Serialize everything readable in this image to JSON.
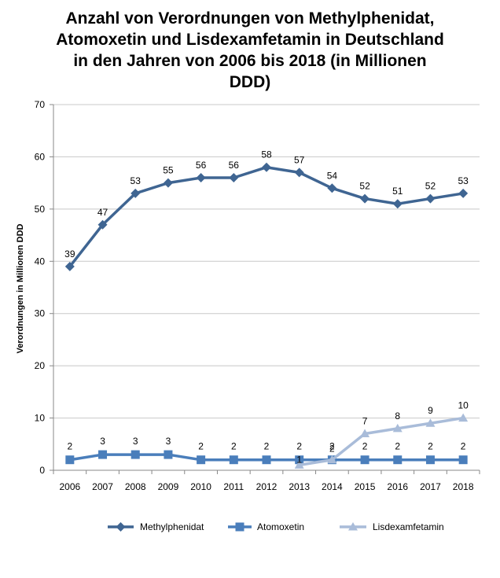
{
  "chart_data": {
    "type": "line",
    "title_lines": [
      "Anzahl von Verordnungen von Methylphenidat,",
      "Atomoxetin und Lisdexamfetamin in Deutschland",
      "in den Jahren von 2006 bis 2018 (in Millionen",
      "DDD)"
    ],
    "ylabel": "Verordnungen in Millionen DDD",
    "xlabel": "",
    "ylim": [
      0,
      70
    ],
    "yticks": [
      0,
      10,
      20,
      30,
      40,
      50,
      60,
      70
    ],
    "grid": true,
    "legend_position": "bottom",
    "categories": [
      "2006",
      "2007",
      "2008",
      "2009",
      "2010",
      "2011",
      "2012",
      "2013",
      "2014",
      "2015",
      "2016",
      "2017",
      "2018"
    ],
    "series": [
      {
        "name": "Methylphenidat",
        "marker": "diamond",
        "color": "#3F6592",
        "values": [
          39,
          47,
          53,
          55,
          56,
          56,
          58,
          57,
          54,
          52,
          51,
          52,
          53
        ],
        "labels": [
          "39",
          "47",
          "53",
          "55",
          "56",
          "56",
          "58",
          "57",
          "54",
          "52",
          "51",
          "52",
          "53"
        ]
      },
      {
        "name": "Atomoxetin",
        "marker": "square",
        "color": "#4A7EBB",
        "values": [
          2,
          3,
          3,
          3,
          2,
          2,
          2,
          2,
          2,
          2,
          2,
          2,
          2
        ],
        "labels": [
          "2",
          "3",
          "3",
          "3",
          "2",
          "2",
          "2",
          "2",
          "2",
          "2",
          "2",
          "2",
          "2"
        ]
      },
      {
        "name": "Lisdexamfetamin",
        "marker": "triangle",
        "color": "#A9BCD9",
        "values": [
          null,
          null,
          null,
          null,
          null,
          null,
          null,
          1,
          2,
          7,
          8,
          9,
          10
        ],
        "labels": [
          null,
          null,
          null,
          null,
          null,
          null,
          null,
          "1",
          "2",
          "7",
          "8",
          "9",
          "10"
        ]
      }
    ]
  }
}
